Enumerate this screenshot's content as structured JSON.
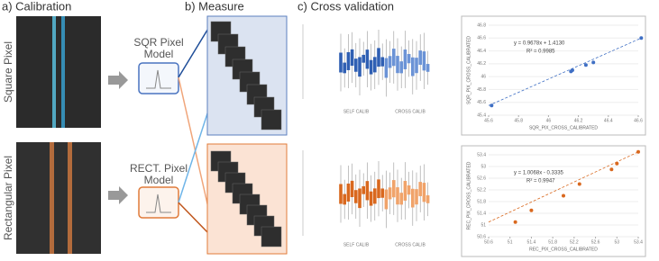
{
  "panels": {
    "a": "a) Calibration",
    "b": "b) Measure",
    "c": "c) Cross validation"
  },
  "rows": [
    {
      "label": "Square Pixel",
      "model": [
        "SQR Pixel",
        "Model"
      ],
      "box_labels": [
        "SELF CALIB",
        "CROSS CALIB"
      ],
      "scatter": {
        "type": "scatter",
        "equation": "y = 0.9678x + 1.4130",
        "r2": "R² = 0.9985",
        "xlabel": "SQR_PIX_CROSS_CALIBRATED",
        "ylabel": "SQR_PIX_CROSS_CALIBRATED",
        "color": "#3f6fc4",
        "xlim": [
          45.6,
          46.6
        ],
        "ylim": [
          45.4,
          46.8
        ],
        "xticks": [
          45.6,
          45.8,
          46,
          46.2,
          46.4,
          46.6
        ],
        "yticks": [
          45.4,
          45.6,
          45.8,
          46,
          46.2,
          46.4,
          46.6,
          46.8
        ],
        "x": [
          45.62,
          46.15,
          46.16,
          46.25,
          46.3,
          46.62
        ],
        "y": [
          45.55,
          46.08,
          46.1,
          46.18,
          46.22,
          46.6
        ]
      }
    },
    {
      "label": "Rectangular Pixel",
      "model": [
        "RECT. Pixel",
        "Model"
      ],
      "box_labels": [
        "SELF CALIB",
        "CROSS CALIB"
      ],
      "scatter": {
        "type": "scatter",
        "equation": "y = 1.0068x - 0.3335",
        "r2": "R² = 0.9947",
        "xlabel": "REC_PIX_CROSS_CALIBRATED",
        "ylabel": "REC_PIX_CROSS_CALIBRATED",
        "color": "#d9681e",
        "xlim": [
          50.6,
          53.4
        ],
        "ylim": [
          50.6,
          53.4
        ],
        "xticks": [
          50.6,
          51,
          51.4,
          51.8,
          52.2,
          52.6,
          53,
          53.4
        ],
        "yticks": [
          50.6,
          51,
          51.4,
          51.8,
          52.2,
          52.6,
          53,
          53.4
        ],
        "x": [
          51.1,
          51.4,
          52.0,
          52.3,
          52.9,
          53.0,
          53.4
        ],
        "y": [
          51.1,
          51.5,
          52.0,
          52.4,
          52.9,
          53.1,
          53.5
        ]
      }
    }
  ]
}
